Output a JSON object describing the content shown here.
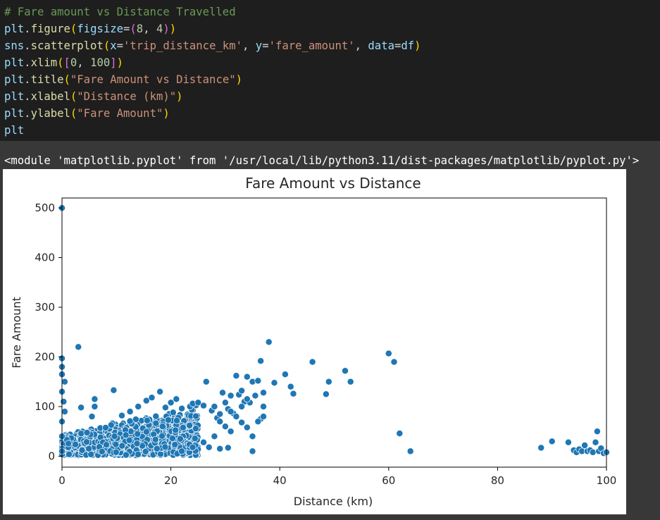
{
  "code_cell": {
    "lines": [
      [
        {
          "t": "# Fare amount vs Distance Travelled",
          "c": "comment"
        }
      ],
      [
        {
          "t": "plt",
          "c": "ident"
        },
        {
          "t": ".",
          "c": "default"
        },
        {
          "t": "figure",
          "c": "fn"
        },
        {
          "t": "(",
          "c": "p0"
        },
        {
          "t": "figsize",
          "c": "ident"
        },
        {
          "t": "=",
          "c": "default"
        },
        {
          "t": "(",
          "c": "p1"
        },
        {
          "t": "8",
          "c": "num"
        },
        {
          "t": ", ",
          "c": "default"
        },
        {
          "t": "4",
          "c": "num"
        },
        {
          "t": ")",
          "c": "p1"
        },
        {
          "t": ")",
          "c": "p0"
        }
      ],
      [
        {
          "t": "sns",
          "c": "ident"
        },
        {
          "t": ".",
          "c": "default"
        },
        {
          "t": "scatterplot",
          "c": "fn"
        },
        {
          "t": "(",
          "c": "p0"
        },
        {
          "t": "x",
          "c": "ident"
        },
        {
          "t": "=",
          "c": "default"
        },
        {
          "t": "'trip_distance_km'",
          "c": "str"
        },
        {
          "t": ", ",
          "c": "default"
        },
        {
          "t": "y",
          "c": "ident"
        },
        {
          "t": "=",
          "c": "default"
        },
        {
          "t": "'fare_amount'",
          "c": "str"
        },
        {
          "t": ", ",
          "c": "default"
        },
        {
          "t": "data",
          "c": "ident"
        },
        {
          "t": "=",
          "c": "default"
        },
        {
          "t": "df",
          "c": "ident"
        },
        {
          "t": ")",
          "c": "p0"
        }
      ],
      [
        {
          "t": "plt",
          "c": "ident"
        },
        {
          "t": ".",
          "c": "default"
        },
        {
          "t": "xlim",
          "c": "fn"
        },
        {
          "t": "(",
          "c": "p0"
        },
        {
          "t": "[",
          "c": "p1"
        },
        {
          "t": "0",
          "c": "num"
        },
        {
          "t": ", ",
          "c": "default"
        },
        {
          "t": "100",
          "c": "num"
        },
        {
          "t": "]",
          "c": "p1"
        },
        {
          "t": ")",
          "c": "p0"
        }
      ],
      [
        {
          "t": "plt",
          "c": "ident"
        },
        {
          "t": ".",
          "c": "default"
        },
        {
          "t": "title",
          "c": "fn"
        },
        {
          "t": "(",
          "c": "p0"
        },
        {
          "t": "\"Fare Amount vs Distance\"",
          "c": "str"
        },
        {
          "t": ")",
          "c": "p0"
        }
      ],
      [
        {
          "t": "plt",
          "c": "ident"
        },
        {
          "t": ".",
          "c": "default"
        },
        {
          "t": "xlabel",
          "c": "fn"
        },
        {
          "t": "(",
          "c": "p0"
        },
        {
          "t": "\"Distance (km)\"",
          "c": "str"
        },
        {
          "t": ")",
          "c": "p0"
        }
      ],
      [
        {
          "t": "plt",
          "c": "ident"
        },
        {
          "t": ".",
          "c": "default"
        },
        {
          "t": "ylabel",
          "c": "fn"
        },
        {
          "t": "(",
          "c": "p0"
        },
        {
          "t": "\"Fare Amount\"",
          "c": "str"
        },
        {
          "t": ")",
          "c": "p0"
        }
      ],
      [
        {
          "t": "plt",
          "c": "ident"
        }
      ]
    ],
    "colors": {
      "comment": "#6a9955",
      "fn": "#dcdcaa",
      "ident": "#9cdcfe",
      "num": "#b5cea8",
      "str": "#ce9178",
      "p0": "#ffd700",
      "p1": "#da70d6",
      "default": "#d4d4d4"
    }
  },
  "output": {
    "text": "<module 'matplotlib.pyplot' from '/usr/local/lib/python3.11/dist-packages/matplotlib/pyplot.py'>"
  },
  "chart_data": {
    "type": "scatter",
    "title": "Fare Amount vs Distance",
    "xlabel": "Distance (km)",
    "ylabel": "Fare Amount",
    "xlim": [
      0,
      100
    ],
    "ylim": [
      -22,
      520
    ],
    "xticks": [
      0,
      20,
      40,
      60,
      80,
      100
    ],
    "yticks": [
      0,
      100,
      200,
      300,
      400,
      500
    ],
    "grid": false,
    "point_color": "#1f77b4",
    "points": [
      [
        0,
        500
      ],
      [
        0,
        197
      ],
      [
        0,
        180
      ],
      [
        0,
        165
      ],
      [
        0.5,
        150
      ],
      [
        0,
        130
      ],
      [
        0.3,
        110
      ],
      [
        0.5,
        90
      ],
      [
        0,
        70
      ],
      [
        0,
        40
      ],
      [
        0,
        10
      ],
      [
        3,
        220
      ],
      [
        3.5,
        98
      ],
      [
        6,
        115
      ],
      [
        6,
        100
      ],
      [
        5.5,
        80
      ],
      [
        9.5,
        133
      ],
      [
        11,
        82
      ],
      [
        12.5,
        90
      ],
      [
        14,
        100
      ],
      [
        15.5,
        112
      ],
      [
        16.5,
        118
      ],
      [
        18,
        130
      ],
      [
        19,
        98
      ],
      [
        20,
        108
      ],
      [
        21,
        115
      ],
      [
        22,
        96
      ],
      [
        23.5,
        100
      ],
      [
        24,
        106
      ],
      [
        25,
        108
      ],
      [
        26,
        102
      ],
      [
        26.5,
        150
      ],
      [
        27.5,
        92
      ],
      [
        28,
        100
      ],
      [
        28.5,
        77
      ],
      [
        29,
        85
      ],
      [
        29.5,
        128
      ],
      [
        30,
        108
      ],
      [
        30.5,
        95
      ],
      [
        31,
        122
      ],
      [
        31.5,
        86
      ],
      [
        32,
        162
      ],
      [
        32.5,
        124
      ],
      [
        33,
        132
      ],
      [
        33.5,
        110
      ],
      [
        34,
        160
      ],
      [
        34.5,
        108
      ],
      [
        35,
        150
      ],
      [
        35.5,
        122
      ],
      [
        36,
        152
      ],
      [
        36.5,
        192
      ],
      [
        37,
        128
      ],
      [
        37,
        100
      ],
      [
        38,
        230
      ],
      [
        39,
        148
      ],
      [
        41,
        165
      ],
      [
        42,
        140
      ],
      [
        42.5,
        126
      ],
      [
        46,
        190
      ],
      [
        48.5,
        125
      ],
      [
        49,
        150
      ],
      [
        52,
        172
      ],
      [
        53,
        150
      ],
      [
        60,
        207
      ],
      [
        61,
        190
      ],
      [
        62,
        46
      ],
      [
        64,
        10
      ],
      [
        88,
        17
      ],
      [
        90,
        30
      ],
      [
        93,
        28
      ],
      [
        94,
        12
      ],
      [
        94.5,
        8
      ],
      [
        95,
        14
      ],
      [
        95.5,
        10
      ],
      [
        96,
        22
      ],
      [
        96.5,
        10
      ],
      [
        97,
        12
      ],
      [
        97.5,
        8
      ],
      [
        98,
        28
      ],
      [
        98.3,
        50
      ],
      [
        98.6,
        10
      ],
      [
        99,
        16
      ],
      [
        99.5,
        6
      ],
      [
        100,
        8
      ],
      [
        27,
        18
      ],
      [
        29,
        15
      ],
      [
        30.5,
        17
      ],
      [
        35,
        10
      ],
      [
        31,
        50
      ],
      [
        33,
        68
      ],
      [
        34,
        58
      ],
      [
        35,
        40
      ],
      [
        36.5,
        75
      ],
      [
        37,
        80
      ],
      [
        22,
        10
      ],
      [
        24,
        18
      ],
      [
        26,
        28
      ],
      [
        28,
        40
      ],
      [
        30,
        60
      ],
      [
        32,
        80
      ],
      [
        33,
        100
      ],
      [
        34,
        115
      ],
      [
        29,
        70
      ],
      [
        31,
        90
      ],
      [
        36,
        70
      ]
    ],
    "cluster": {
      "note_free": true,
      "x_range": [
        0,
        25
      ],
      "y_base_slope": 2.0,
      "count": 1400,
      "seed": 7
    }
  }
}
